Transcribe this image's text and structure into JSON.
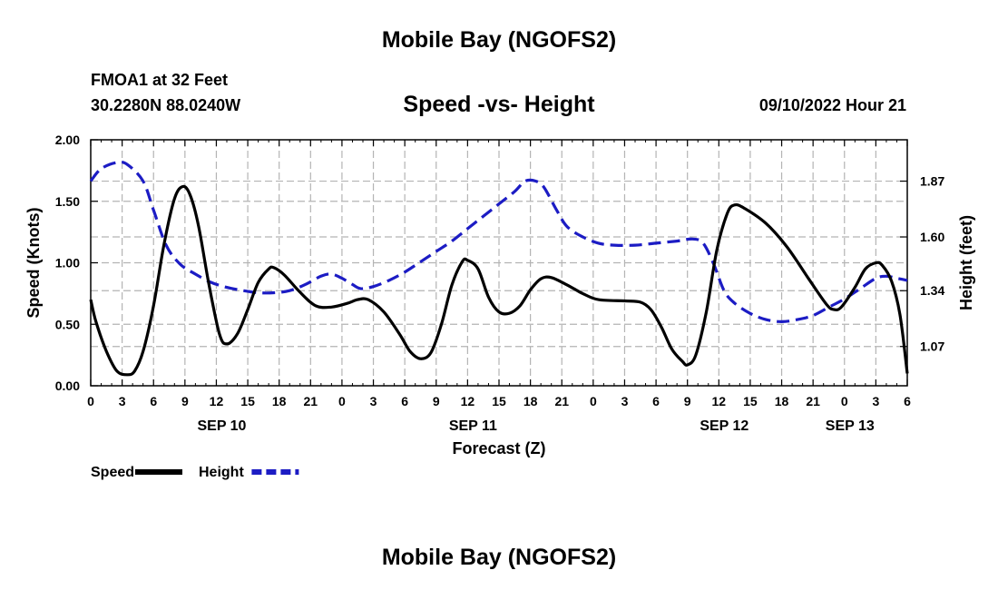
{
  "page_title": "Mobile Bay (NGOFS2)",
  "station": "FMOA1 at 32 Feet",
  "coordinates": "30.2280N  88.0240W",
  "chart_title": "Speed -vs- Height",
  "timestamp": "09/10/2022 Hour 21",
  "footer_title": "Mobile Bay (NGOFS2)",
  "chart_data": {
    "type": "line",
    "title": "Speed -vs- Height",
    "xlabel": "Forecast (Z)",
    "ylabel": "Speed (Knots)",
    "y2label": "Height (feet)",
    "x_range_hours": [
      0,
      78
    ],
    "ylim": [
      0,
      2.0
    ],
    "y2lim": [
      0.88,
      2.07
    ],
    "grid": true,
    "x_tick_step_hours": 3,
    "x_tick_labels": [
      "0",
      "3",
      "6",
      "9",
      "12",
      "15",
      "18",
      "21",
      "0",
      "3",
      "6",
      "9",
      "12",
      "15",
      "18",
      "21",
      "0",
      "3",
      "6",
      "9",
      "12",
      "15",
      "18",
      "21",
      "0",
      "3",
      "6"
    ],
    "date_labels": [
      {
        "label": "SEP 10",
        "hour": 12
      },
      {
        "label": "SEP 11",
        "hour": 36
      },
      {
        "label": "SEP 12",
        "hour": 60
      },
      {
        "label": "SEP 13",
        "hour": 72
      }
    ],
    "y_ticks": [
      "0.00",
      "0.50",
      "1.00",
      "1.50",
      "2.00"
    ],
    "y_tick_values": [
      0,
      0.5,
      1.0,
      1.5,
      2.0
    ],
    "y2_ticks": [
      "1.07",
      "1.34",
      "1.60",
      "1.87"
    ],
    "y2_tick_values": [
      1.07,
      1.34,
      1.6,
      1.87
    ],
    "series": [
      {
        "name": "Speed",
        "axis": "left",
        "color": "#000000",
        "style": "solid",
        "points": [
          [
            0,
            0.7
          ],
          [
            0.5,
            0.52
          ],
          [
            1.5,
            0.28
          ],
          [
            2.5,
            0.12
          ],
          [
            3.5,
            0.09
          ],
          [
            4.2,
            0.12
          ],
          [
            5,
            0.28
          ],
          [
            6,
            0.65
          ],
          [
            7,
            1.15
          ],
          [
            8,
            1.52
          ],
          [
            8.8,
            1.62
          ],
          [
            9.5,
            1.55
          ],
          [
            10.3,
            1.3
          ],
          [
            11.3,
            0.82
          ],
          [
            12.3,
            0.42
          ],
          [
            13,
            0.34
          ],
          [
            14,
            0.42
          ],
          [
            15,
            0.62
          ],
          [
            16,
            0.84
          ],
          [
            17,
            0.95
          ],
          [
            17.5,
            0.96
          ],
          [
            18.5,
            0.9
          ],
          [
            20,
            0.76
          ],
          [
            21.5,
            0.65
          ],
          [
            23,
            0.64
          ],
          [
            24.5,
            0.67
          ],
          [
            25.5,
            0.7
          ],
          [
            26.5,
            0.7
          ],
          [
            28,
            0.6
          ],
          [
            29.5,
            0.42
          ],
          [
            30.5,
            0.28
          ],
          [
            31.5,
            0.22
          ],
          [
            32.5,
            0.27
          ],
          [
            33.5,
            0.5
          ],
          [
            34.5,
            0.82
          ],
          [
            35.5,
            1.01
          ],
          [
            36,
            1.02
          ],
          [
            37,
            0.95
          ],
          [
            38,
            0.72
          ],
          [
            39,
            0.6
          ],
          [
            40,
            0.59
          ],
          [
            41,
            0.65
          ],
          [
            42,
            0.78
          ],
          [
            43,
            0.87
          ],
          [
            44,
            0.88
          ],
          [
            45.5,
            0.82
          ],
          [
            47,
            0.75
          ],
          [
            48.5,
            0.7
          ],
          [
            51,
            0.69
          ],
          [
            52.5,
            0.68
          ],
          [
            53.5,
            0.62
          ],
          [
            54.5,
            0.48
          ],
          [
            55.5,
            0.3
          ],
          [
            56.5,
            0.2
          ],
          [
            57,
            0.17
          ],
          [
            57.8,
            0.25
          ],
          [
            58.8,
            0.6
          ],
          [
            59.8,
            1.1
          ],
          [
            60.8,
            1.4
          ],
          [
            61.5,
            1.47
          ],
          [
            62.5,
            1.44
          ],
          [
            64.5,
            1.32
          ],
          [
            66.5,
            1.13
          ],
          [
            68.5,
            0.88
          ],
          [
            70.3,
            0.66
          ],
          [
            71,
            0.62
          ],
          [
            71.7,
            0.64
          ],
          [
            73,
            0.8
          ],
          [
            74,
            0.95
          ],
          [
            75,
            1.0
          ],
          [
            75.6,
            0.98
          ],
          [
            76.5,
            0.85
          ],
          [
            77.3,
            0.58
          ],
          [
            78,
            0.1
          ]
        ]
      },
      {
        "name": "Height",
        "axis": "right",
        "color": "#1c1cc4",
        "style": "dashed",
        "points": [
          [
            0,
            1.87
          ],
          [
            1,
            1.93
          ],
          [
            2.5,
            1.96
          ],
          [
            3.5,
            1.95
          ],
          [
            5,
            1.87
          ],
          [
            6,
            1.73
          ],
          [
            7.2,
            1.56
          ],
          [
            8.5,
            1.47
          ],
          [
            10,
            1.42
          ],
          [
            11.5,
            1.38
          ],
          [
            13,
            1.356
          ],
          [
            14.5,
            1.341
          ],
          [
            16,
            1.33
          ],
          [
            17.5,
            1.33
          ],
          [
            19,
            1.34
          ],
          [
            20.5,
            1.37
          ],
          [
            22,
            1.41
          ],
          [
            23,
            1.42
          ],
          [
            24,
            1.4
          ],
          [
            25,
            1.37
          ],
          [
            25.8,
            1.35
          ],
          [
            27,
            1.36
          ],
          [
            28.5,
            1.39
          ],
          [
            30,
            1.43
          ],
          [
            31.5,
            1.48
          ],
          [
            33,
            1.53
          ],
          [
            34.5,
            1.58
          ],
          [
            36,
            1.64
          ],
          [
            37.5,
            1.7
          ],
          [
            39,
            1.76
          ],
          [
            40.5,
            1.82
          ],
          [
            41.5,
            1.87
          ],
          [
            42.5,
            1.87
          ],
          [
            43.3,
            1.84
          ],
          [
            44.5,
            1.73
          ],
          [
            45.5,
            1.65
          ],
          [
            47,
            1.6
          ],
          [
            48.5,
            1.57
          ],
          [
            50,
            1.56
          ],
          [
            52,
            1.56
          ],
          [
            54,
            1.57
          ],
          [
            56,
            1.58
          ],
          [
            57.5,
            1.59
          ],
          [
            58.5,
            1.57
          ],
          [
            59.5,
            1.47
          ],
          [
            60.5,
            1.34
          ],
          [
            61.5,
            1.28
          ],
          [
            63,
            1.23
          ],
          [
            64.5,
            1.2
          ],
          [
            66,
            1.19
          ],
          [
            67.5,
            1.2
          ],
          [
            69,
            1.22
          ],
          [
            70.5,
            1.26
          ],
          [
            72,
            1.3
          ],
          [
            73.5,
            1.35
          ],
          [
            75,
            1.4
          ],
          [
            76,
            1.41
          ],
          [
            77,
            1.4
          ],
          [
            78,
            1.39
          ]
        ]
      }
    ],
    "legend": [
      {
        "label": "Speed",
        "color": "#000000",
        "style": "solid"
      },
      {
        "label": "Height",
        "color": "#1c1cc4",
        "style": "dashed"
      }
    ]
  }
}
